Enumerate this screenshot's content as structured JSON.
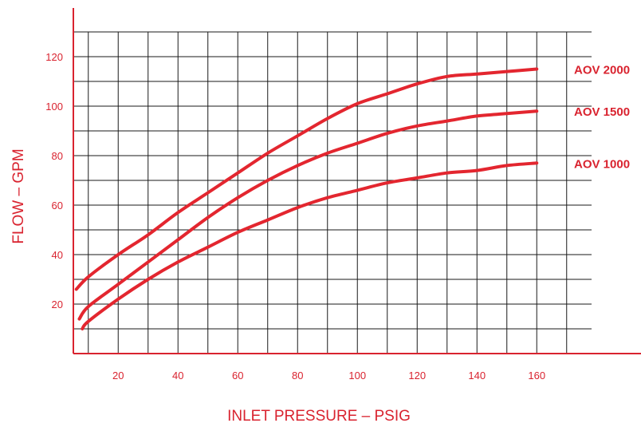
{
  "chart_data": {
    "type": "line",
    "xlabel": "INLET PRESSURE – PSIG",
    "ylabel": "FLOW – GPM",
    "xlim": [
      0,
      170
    ],
    "ylim": [
      0,
      130
    ],
    "x_ticks": [
      "20",
      "40",
      "60",
      "80",
      "100",
      "120",
      "140",
      "160"
    ],
    "y_ticks": [
      "20",
      "40",
      "60",
      "80",
      "100",
      "120"
    ],
    "grid": true,
    "legend": "labels at right end of each curve",
    "series": [
      {
        "name": "AOV 2000",
        "x": [
          6,
          10,
          20,
          30,
          40,
          50,
          60,
          70,
          80,
          90,
          100,
          110,
          120,
          130,
          140,
          150,
          160
        ],
        "values": [
          26,
          31,
          40,
          48,
          57,
          65,
          73,
          81,
          88,
          95,
          101,
          105,
          109,
          112,
          113,
          114,
          115
        ]
      },
      {
        "name": "AOV 1500",
        "x": [
          7,
          10,
          20,
          30,
          40,
          50,
          60,
          70,
          80,
          90,
          100,
          110,
          120,
          130,
          140,
          150,
          160
        ],
        "values": [
          14,
          19,
          28,
          37,
          46,
          55,
          63,
          70,
          76,
          81,
          85,
          89,
          92,
          94,
          96,
          97,
          98
        ]
      },
      {
        "name": "AOV 1000",
        "x": [
          8,
          10,
          20,
          30,
          40,
          50,
          60,
          70,
          80,
          90,
          100,
          110,
          120,
          130,
          140,
          150,
          160
        ],
        "values": [
          10,
          13,
          22,
          30,
          37,
          43,
          49,
          54,
          59,
          63,
          66,
          69,
          71,
          73,
          74,
          76,
          77
        ]
      }
    ],
    "colors": {
      "curve": "#e3262f",
      "axis": "#d9232f",
      "grid": "#1a1a1a",
      "text": "#d9232f"
    }
  }
}
